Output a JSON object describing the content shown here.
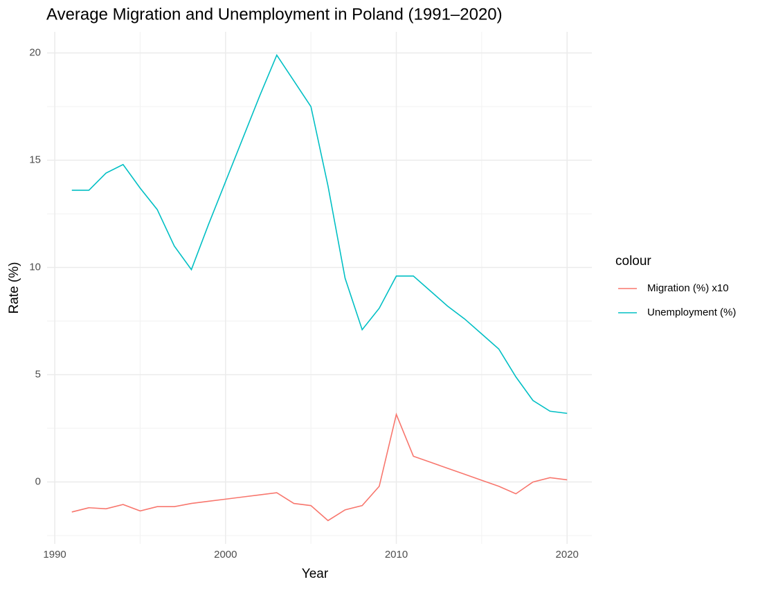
{
  "chart_data": {
    "type": "line",
    "title": "Average Migration and Unemployment in Poland (1991–2020)",
    "x_label": "Year",
    "y_label": "Rate (%)",
    "legend_title": "colour",
    "x": [
      1991,
      1992,
      1993,
      1994,
      1995,
      1996,
      1997,
      1998,
      1999,
      2000,
      2001,
      2002,
      2003,
      2004,
      2005,
      2006,
      2007,
      2008,
      2009,
      2010,
      2011,
      2012,
      2013,
      2014,
      2015,
      2016,
      2017,
      2018,
      2019,
      2020
    ],
    "series": [
      {
        "name": "Migration (%) x10",
        "color": "#F8766D",
        "values": [
          -1.4,
          -1.2,
          -1.25,
          -1.05,
          -1.35,
          -1.15,
          -1.15,
          -1.0,
          -0.9,
          -0.8,
          -0.7,
          -0.6,
          -0.5,
          -1.0,
          -1.1,
          -1.8,
          -1.3,
          -1.1,
          -0.2,
          3.15,
          1.2,
          0.92,
          0.64,
          0.36,
          0.08,
          -0.2,
          -0.55,
          0.0,
          0.2,
          0.1
        ]
      },
      {
        "name": "Unemployment (%)",
        "color": "#00BFC4",
        "values": [
          13.6,
          13.6,
          14.4,
          14.8,
          13.7,
          12.7,
          11.0,
          9.9,
          12.0,
          14.0,
          16.0,
          18.0,
          19.9,
          18.7,
          17.5,
          13.8,
          9.5,
          7.1,
          8.1,
          9.6,
          9.6,
          8.9,
          8.2,
          7.6,
          6.9,
          6.2,
          4.9,
          3.8,
          3.3,
          3.2
        ]
      }
    ],
    "xlim": [
      1989.55,
      2021.45
    ],
    "xticks": [
      1990,
      2000,
      2010,
      2020
    ],
    "ylim": [
      -2.885,
      20.985
    ],
    "yticks": [
      0,
      5,
      10,
      15,
      20
    ],
    "grid": true,
    "legend_position": "right"
  }
}
